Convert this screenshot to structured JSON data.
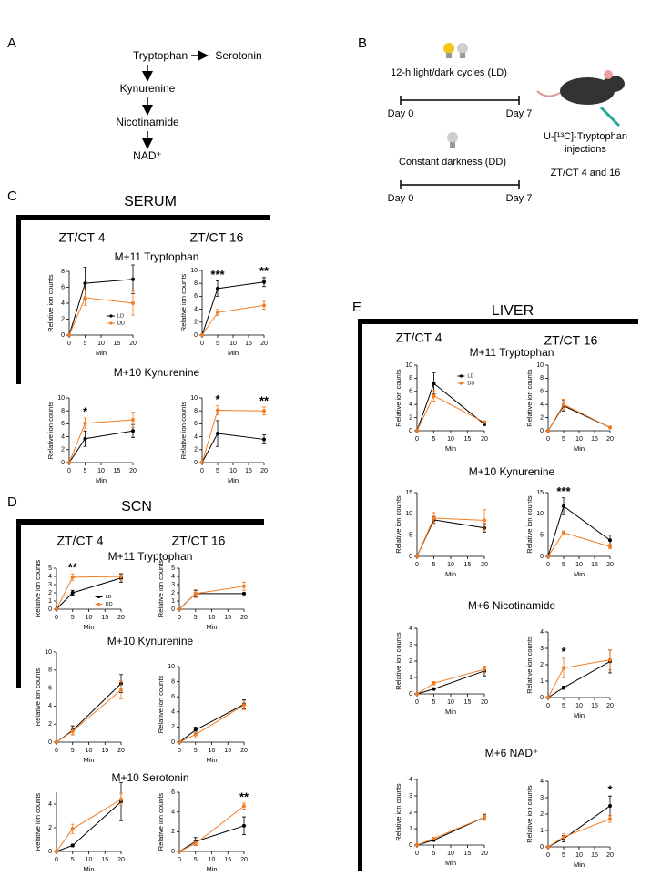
{
  "panel_a": {
    "label": "A",
    "nodes": [
      "Tryptophan",
      "Serotonin",
      "Kynurenine",
      "Nicotinamide",
      "NAD⁺"
    ]
  },
  "panel_b": {
    "label": "B",
    "ld_label": "12-h light/dark cycles (LD)",
    "dd_label": "Constant darkness (DD)",
    "day_start": "Day 0",
    "day_end": "Day 7",
    "injection": [
      "U-[¹³C]-Tryptophan",
      "injections"
    ],
    "timepoints": "ZT/CT 4 and 16"
  },
  "sections": [
    {
      "label": "C",
      "title": "SERUM",
      "columns": [
        "ZT/CT 4",
        "ZT/CT 16"
      ],
      "rows": [
        "M+11 Tryptophan",
        "M+10 Kynurenine"
      ]
    },
    {
      "label": "D",
      "title": "SCN",
      "columns": [
        "ZT/CT 4",
        "ZT/CT 16"
      ],
      "rows": [
        "M+11 Tryptophan",
        "M+10 Kynurenine",
        "M+10 Serotonin"
      ]
    },
    {
      "label": "E",
      "title": "LIVER",
      "columns": [
        "ZT/CT 4",
        "ZT/CT 16"
      ],
      "rows": [
        "M+11 Tryptophan",
        "M+10 Kynurenine",
        "M+6 Nicotinamide",
        "M+6 NAD⁺"
      ]
    }
  ],
  "chart_data": [
    {
      "type": "line",
      "ylabel": "Relative ion counts",
      "xlabel": "Min",
      "x": [
        0,
        5,
        20
      ],
      "xlim": [
        0,
        20
      ],
      "xticks": [
        0,
        5,
        10,
        15,
        20
      ],
      "ylim": [
        0,
        8
      ],
      "yticks": [
        0,
        2,
        4,
        6,
        8
      ],
      "legend": "lower-right",
      "series": [
        {
          "name": "LD",
          "color": "#000000",
          "values": [
            0,
            6.5,
            7
          ],
          "errors": [
            0,
            2,
            1.8
          ]
        },
        {
          "name": "DD",
          "color": "#f47c20",
          "values": [
            0,
            4.7,
            4
          ],
          "errors": [
            0,
            1,
            1.5
          ]
        }
      ],
      "annotations": []
    },
    {
      "type": "line",
      "ylabel": "Relative ion counts",
      "xlabel": "Min",
      "x": [
        0,
        5,
        20
      ],
      "xlim": [
        0,
        20
      ],
      "xticks": [
        0,
        5,
        10,
        15,
        20
      ],
      "ylim": [
        0,
        10
      ],
      "yticks": [
        0,
        2,
        4,
        6,
        8,
        10
      ],
      "series": [
        {
          "name": "LD",
          "color": "#000000",
          "values": [
            0,
            7.2,
            8.2
          ],
          "errors": [
            0,
            1.2,
            0.7
          ]
        },
        {
          "name": "DD",
          "color": "#f47c20",
          "values": [
            0,
            3.5,
            4.6
          ],
          "errors": [
            0,
            0.5,
            0.6
          ]
        }
      ],
      "annotations": [
        {
          "text": "***",
          "x": 5
        },
        {
          "text": "**",
          "x": 20
        }
      ]
    },
    {
      "type": "line",
      "ylabel": "Relative ion counts",
      "xlabel": "Min",
      "x": [
        0,
        5,
        20
      ],
      "xlim": [
        0,
        20
      ],
      "xticks": [
        0,
        5,
        10,
        15,
        20
      ],
      "ylim": [
        0,
        10
      ],
      "yticks": [
        0,
        2,
        4,
        6,
        8,
        10
      ],
      "series": [
        {
          "name": "LD",
          "color": "#000000",
          "values": [
            0,
            3.7,
            4.9
          ],
          "errors": [
            0,
            1.2,
            1
          ]
        },
        {
          "name": "DD",
          "color": "#f47c20",
          "values": [
            0,
            6.1,
            6.6
          ],
          "errors": [
            0,
            0.8,
            1.2
          ]
        }
      ],
      "annotations": [
        {
          "text": "*",
          "x": 5
        }
      ]
    },
    {
      "type": "line",
      "ylabel": "Relative ion counts",
      "xlabel": "Min",
      "x": [
        0,
        5,
        20
      ],
      "xlim": [
        0,
        20
      ],
      "xticks": [
        0,
        5,
        10,
        15,
        20
      ],
      "ylim": [
        0,
        10
      ],
      "yticks": [
        0,
        2,
        4,
        6,
        8,
        10
      ],
      "series": [
        {
          "name": "LD",
          "color": "#000000",
          "values": [
            0,
            4.5,
            3.6
          ],
          "errors": [
            0,
            2,
            0.7
          ]
        },
        {
          "name": "DD",
          "color": "#f47c20",
          "values": [
            0,
            8.1,
            8
          ],
          "errors": [
            0,
            0.7,
            0.6
          ]
        }
      ],
      "annotations": [
        {
          "text": "*",
          "x": 5
        },
        {
          "text": "**",
          "x": 20
        }
      ]
    },
    {
      "type": "line",
      "ylabel": "Relative ion counts",
      "xlabel": "Min",
      "x": [
        0,
        5,
        20
      ],
      "xlim": [
        0,
        20
      ],
      "xticks": [
        0,
        5,
        10,
        15,
        20
      ],
      "ylim": [
        0,
        5
      ],
      "yticks": [
        0,
        1,
        2,
        3,
        4,
        5
      ],
      "legend": "lower-right",
      "series": [
        {
          "name": "LD",
          "color": "#000000",
          "values": [
            0,
            2,
            3.8
          ],
          "errors": [
            0,
            0.3,
            0.5
          ]
        },
        {
          "name": "DD",
          "color": "#f47c20",
          "values": [
            0,
            3.9,
            4
          ],
          "errors": [
            0,
            0.4,
            0.4
          ]
        }
      ],
      "annotations": [
        {
          "text": "**",
          "x": 5
        }
      ]
    },
    {
      "type": "line",
      "ylabel": "Relative ion counts",
      "xlabel": "Min",
      "x": [
        0,
        5,
        20
      ],
      "xlim": [
        0,
        20
      ],
      "xticks": [
        0,
        5,
        10,
        15,
        20
      ],
      "ylim": [
        0,
        5
      ],
      "yticks": [
        0,
        1,
        2,
        3,
        4,
        5
      ],
      "series": [
        {
          "name": "LD",
          "color": "#000000",
          "values": [
            0,
            1.9,
            1.9
          ],
          "errors": [
            0,
            0.4,
            0.1
          ]
        },
        {
          "name": "DD",
          "color": "#f47c20",
          "values": [
            0,
            1.9,
            2.8
          ],
          "errors": [
            0,
            0.5,
            0.5
          ]
        }
      ],
      "annotations": []
    },
    {
      "type": "line",
      "ylabel": "Relative ion counts",
      "xlabel": "Min",
      "x": [
        0,
        5,
        20
      ],
      "xlim": [
        0,
        20
      ],
      "xticks": [
        0,
        5,
        10,
        15,
        20
      ],
      "ylim": [
        0,
        10
      ],
      "yticks": [
        0,
        2,
        4,
        6,
        8,
        10
      ],
      "series": [
        {
          "name": "LD",
          "color": "#000000",
          "values": [
            0,
            1.3,
            6.5
          ],
          "errors": [
            0,
            0.5,
            1
          ]
        },
        {
          "name": "DD",
          "color": "#f47c20",
          "values": [
            0,
            1.2,
            5.8
          ],
          "errors": [
            0,
            0.4,
            1
          ]
        }
      ],
      "annotations": []
    },
    {
      "type": "line",
      "ylabel": "Relative ion counts",
      "xlabel": "Min",
      "x": [
        0,
        5,
        20
      ],
      "xlim": [
        0,
        20
      ],
      "xticks": [
        0,
        5,
        10,
        15,
        20
      ],
      "ylim": [
        0,
        10
      ],
      "yticks": [
        0,
        2,
        4,
        6,
        8,
        10
      ],
      "series": [
        {
          "name": "LD",
          "color": "#000000",
          "values": [
            0,
            1.6,
            5
          ],
          "errors": [
            0,
            0.4,
            0.6
          ]
        },
        {
          "name": "DD",
          "color": "#f47c20",
          "values": [
            0,
            1,
            4.9
          ],
          "errors": [
            0,
            0.4,
            0.6
          ]
        }
      ],
      "annotations": []
    },
    {
      "type": "line",
      "ylabel": "Relative ion counts",
      "xlabel": "Min",
      "x": [
        0,
        5,
        20
      ],
      "xlim": [
        0,
        20
      ],
      "xticks": [
        0,
        5,
        10,
        15,
        20
      ],
      "ylim": [
        0,
        5
      ],
      "yticks": [
        0,
        2,
        4
      ],
      "series": [
        {
          "name": "LD",
          "color": "#000000",
          "values": [
            0,
            0.5,
            4.2
          ],
          "errors": [
            0,
            0.1,
            1.6
          ]
        },
        {
          "name": "DD",
          "color": "#f47c20",
          "values": [
            0,
            1.9,
            4.4
          ],
          "errors": [
            0,
            0.4,
            0.5
          ]
        }
      ],
      "annotations": []
    },
    {
      "type": "line",
      "ylabel": "Relative ion counts",
      "xlabel": "Min",
      "x": [
        0,
        5,
        20
      ],
      "xlim": [
        0,
        20
      ],
      "xticks": [
        0,
        5,
        10,
        15,
        20
      ],
      "ylim": [
        0,
        6
      ],
      "yticks": [
        0,
        2,
        4,
        6
      ],
      "series": [
        {
          "name": "LD",
          "color": "#000000",
          "values": [
            0,
            1,
            2.6
          ],
          "errors": [
            0,
            0.4,
            0.9
          ]
        },
        {
          "name": "DD",
          "color": "#f47c20",
          "values": [
            0,
            0.8,
            4.6
          ],
          "errors": [
            0,
            0.2,
            0.3
          ]
        }
      ],
      "annotations": [
        {
          "text": "**",
          "x": 20
        }
      ]
    },
    {
      "type": "line",
      "ylabel": "Relative ion counts",
      "xlabel": "Min",
      "x": [
        0,
        5,
        20
      ],
      "xlim": [
        0,
        20
      ],
      "xticks": [
        0,
        5,
        10,
        15,
        20
      ],
      "ylim": [
        0,
        10
      ],
      "yticks": [
        0,
        2,
        4,
        6,
        8,
        10
      ],
      "legend": "upper-right",
      "series": [
        {
          "name": "LD",
          "color": "#000000",
          "values": [
            0,
            7.2,
            1
          ],
          "errors": [
            0,
            1.6,
            0.2
          ]
        },
        {
          "name": "DD",
          "color": "#f47c20",
          "values": [
            0,
            5.3,
            1.3
          ],
          "errors": [
            0,
            0.8,
            0.2
          ]
        }
      ],
      "annotations": []
    },
    {
      "type": "line",
      "ylabel": "Relative ion counts",
      "xlabel": "Min",
      "x": [
        0,
        5,
        20
      ],
      "xlim": [
        0,
        20
      ],
      "xticks": [
        0,
        5,
        10,
        15,
        20
      ],
      "ylim": [
        0,
        10
      ],
      "yticks": [
        0,
        2,
        4,
        6,
        8,
        10
      ],
      "series": [
        {
          "name": "LD",
          "color": "#000000",
          "values": [
            0,
            3.8,
            0.5
          ],
          "errors": [
            0,
            0.8,
            0.1
          ]
        },
        {
          "name": "DD",
          "color": "#f47c20",
          "values": [
            0,
            4,
            0.5
          ],
          "errors": [
            0,
            0.8,
            0.1
          ]
        }
      ],
      "annotations": []
    },
    {
      "type": "line",
      "ylabel": "Relative ion counts",
      "xlabel": "Min",
      "x": [
        0,
        5,
        20
      ],
      "xlim": [
        0,
        20
      ],
      "xticks": [
        0,
        5,
        10,
        15,
        20
      ],
      "ylim": [
        0,
        15
      ],
      "yticks": [
        0,
        5,
        10,
        15
      ],
      "series": [
        {
          "name": "LD",
          "color": "#000000",
          "values": [
            0,
            8.6,
            6.7
          ],
          "errors": [
            0,
            0.8,
            1
          ]
        },
        {
          "name": "DD",
          "color": "#f47c20",
          "values": [
            0,
            9,
            8.5
          ],
          "errors": [
            0,
            1.3,
            2.5
          ]
        }
      ],
      "annotations": []
    },
    {
      "type": "line",
      "ylabel": "Relative ion counts",
      "xlabel": "Min",
      "x": [
        0,
        5,
        20
      ],
      "xlim": [
        0,
        20
      ],
      "xticks": [
        0,
        5,
        10,
        15,
        20
      ],
      "ylim": [
        0,
        15
      ],
      "yticks": [
        0,
        5,
        10,
        15
      ],
      "series": [
        {
          "name": "LD",
          "color": "#000000",
          "values": [
            0,
            11.8,
            3.8
          ],
          "errors": [
            0,
            2,
            1.2
          ]
        },
        {
          "name": "DD",
          "color": "#f47c20",
          "values": [
            0,
            5.6,
            2.3
          ],
          "errors": [
            0,
            0.4,
            0.5
          ]
        }
      ],
      "annotations": [
        {
          "text": "***",
          "x": 5
        }
      ]
    },
    {
      "type": "line",
      "ylabel": "Relative ion counts",
      "xlabel": "Min",
      "x": [
        0,
        5,
        20
      ],
      "xlim": [
        0,
        20
      ],
      "xticks": [
        0,
        5,
        10,
        15,
        20
      ],
      "ylim": [
        0,
        4
      ],
      "yticks": [
        0,
        1,
        2,
        3,
        4
      ],
      "series": [
        {
          "name": "LD",
          "color": "#000000",
          "values": [
            0,
            0.3,
            1.4
          ],
          "errors": [
            0,
            0.05,
            0.3
          ]
        },
        {
          "name": "DD",
          "color": "#f47c20",
          "values": [
            0,
            0.65,
            1.5
          ],
          "errors": [
            0,
            0.1,
            0.2
          ]
        }
      ],
      "annotations": []
    },
    {
      "type": "line",
      "ylabel": "Relative ion counts",
      "xlabel": "Min",
      "x": [
        0,
        5,
        20
      ],
      "xlim": [
        0,
        20
      ],
      "xticks": [
        0,
        5,
        10,
        15,
        20
      ],
      "ylim": [
        0,
        4
      ],
      "yticks": [
        0,
        1,
        2,
        3,
        4
      ],
      "series": [
        {
          "name": "LD",
          "color": "#000000",
          "values": [
            0,
            0.6,
            2.2
          ],
          "errors": [
            0,
            0.1,
            0.7
          ]
        },
        {
          "name": "DD",
          "color": "#f47c20",
          "values": [
            0,
            1.8,
            2.3
          ],
          "errors": [
            0,
            0.6,
            0.6
          ]
        }
      ],
      "annotations": [
        {
          "text": "*",
          "x": 5
        }
      ]
    },
    {
      "type": "line",
      "ylabel": "Relative ion counts",
      "xlabel": "Min",
      "x": [
        0,
        5,
        20
      ],
      "xlim": [
        0,
        20
      ],
      "xticks": [
        0,
        5,
        10,
        15,
        20
      ],
      "ylim": [
        0,
        4
      ],
      "yticks": [
        0,
        1,
        2,
        3,
        4
      ],
      "series": [
        {
          "name": "LD",
          "color": "#000000",
          "values": [
            0,
            0.3,
            1.7
          ],
          "errors": [
            0,
            0.05,
            0.15
          ]
        },
        {
          "name": "DD",
          "color": "#f47c20",
          "values": [
            0,
            0.4,
            1.7
          ],
          "errors": [
            0,
            0.05,
            0.2
          ]
        }
      ],
      "annotations": []
    },
    {
      "type": "line",
      "ylabel": "Relative ion counts",
      "xlabel": "Min",
      "x": [
        0,
        5,
        20
      ],
      "xlim": [
        0,
        20
      ],
      "xticks": [
        0,
        5,
        10,
        15,
        20
      ],
      "ylim": [
        0,
        4
      ],
      "yticks": [
        0,
        1,
        2,
        3,
        4
      ],
      "series": [
        {
          "name": "LD",
          "color": "#000000",
          "values": [
            0,
            0.5,
            2.5
          ],
          "errors": [
            0,
            0.2,
            0.6
          ]
        },
        {
          "name": "DD",
          "color": "#f47c20",
          "values": [
            0,
            0.6,
            1.7
          ],
          "errors": [
            0,
            0.2,
            0.2
          ]
        }
      ],
      "annotations": [
        {
          "text": "*",
          "x": 20
        }
      ]
    }
  ]
}
